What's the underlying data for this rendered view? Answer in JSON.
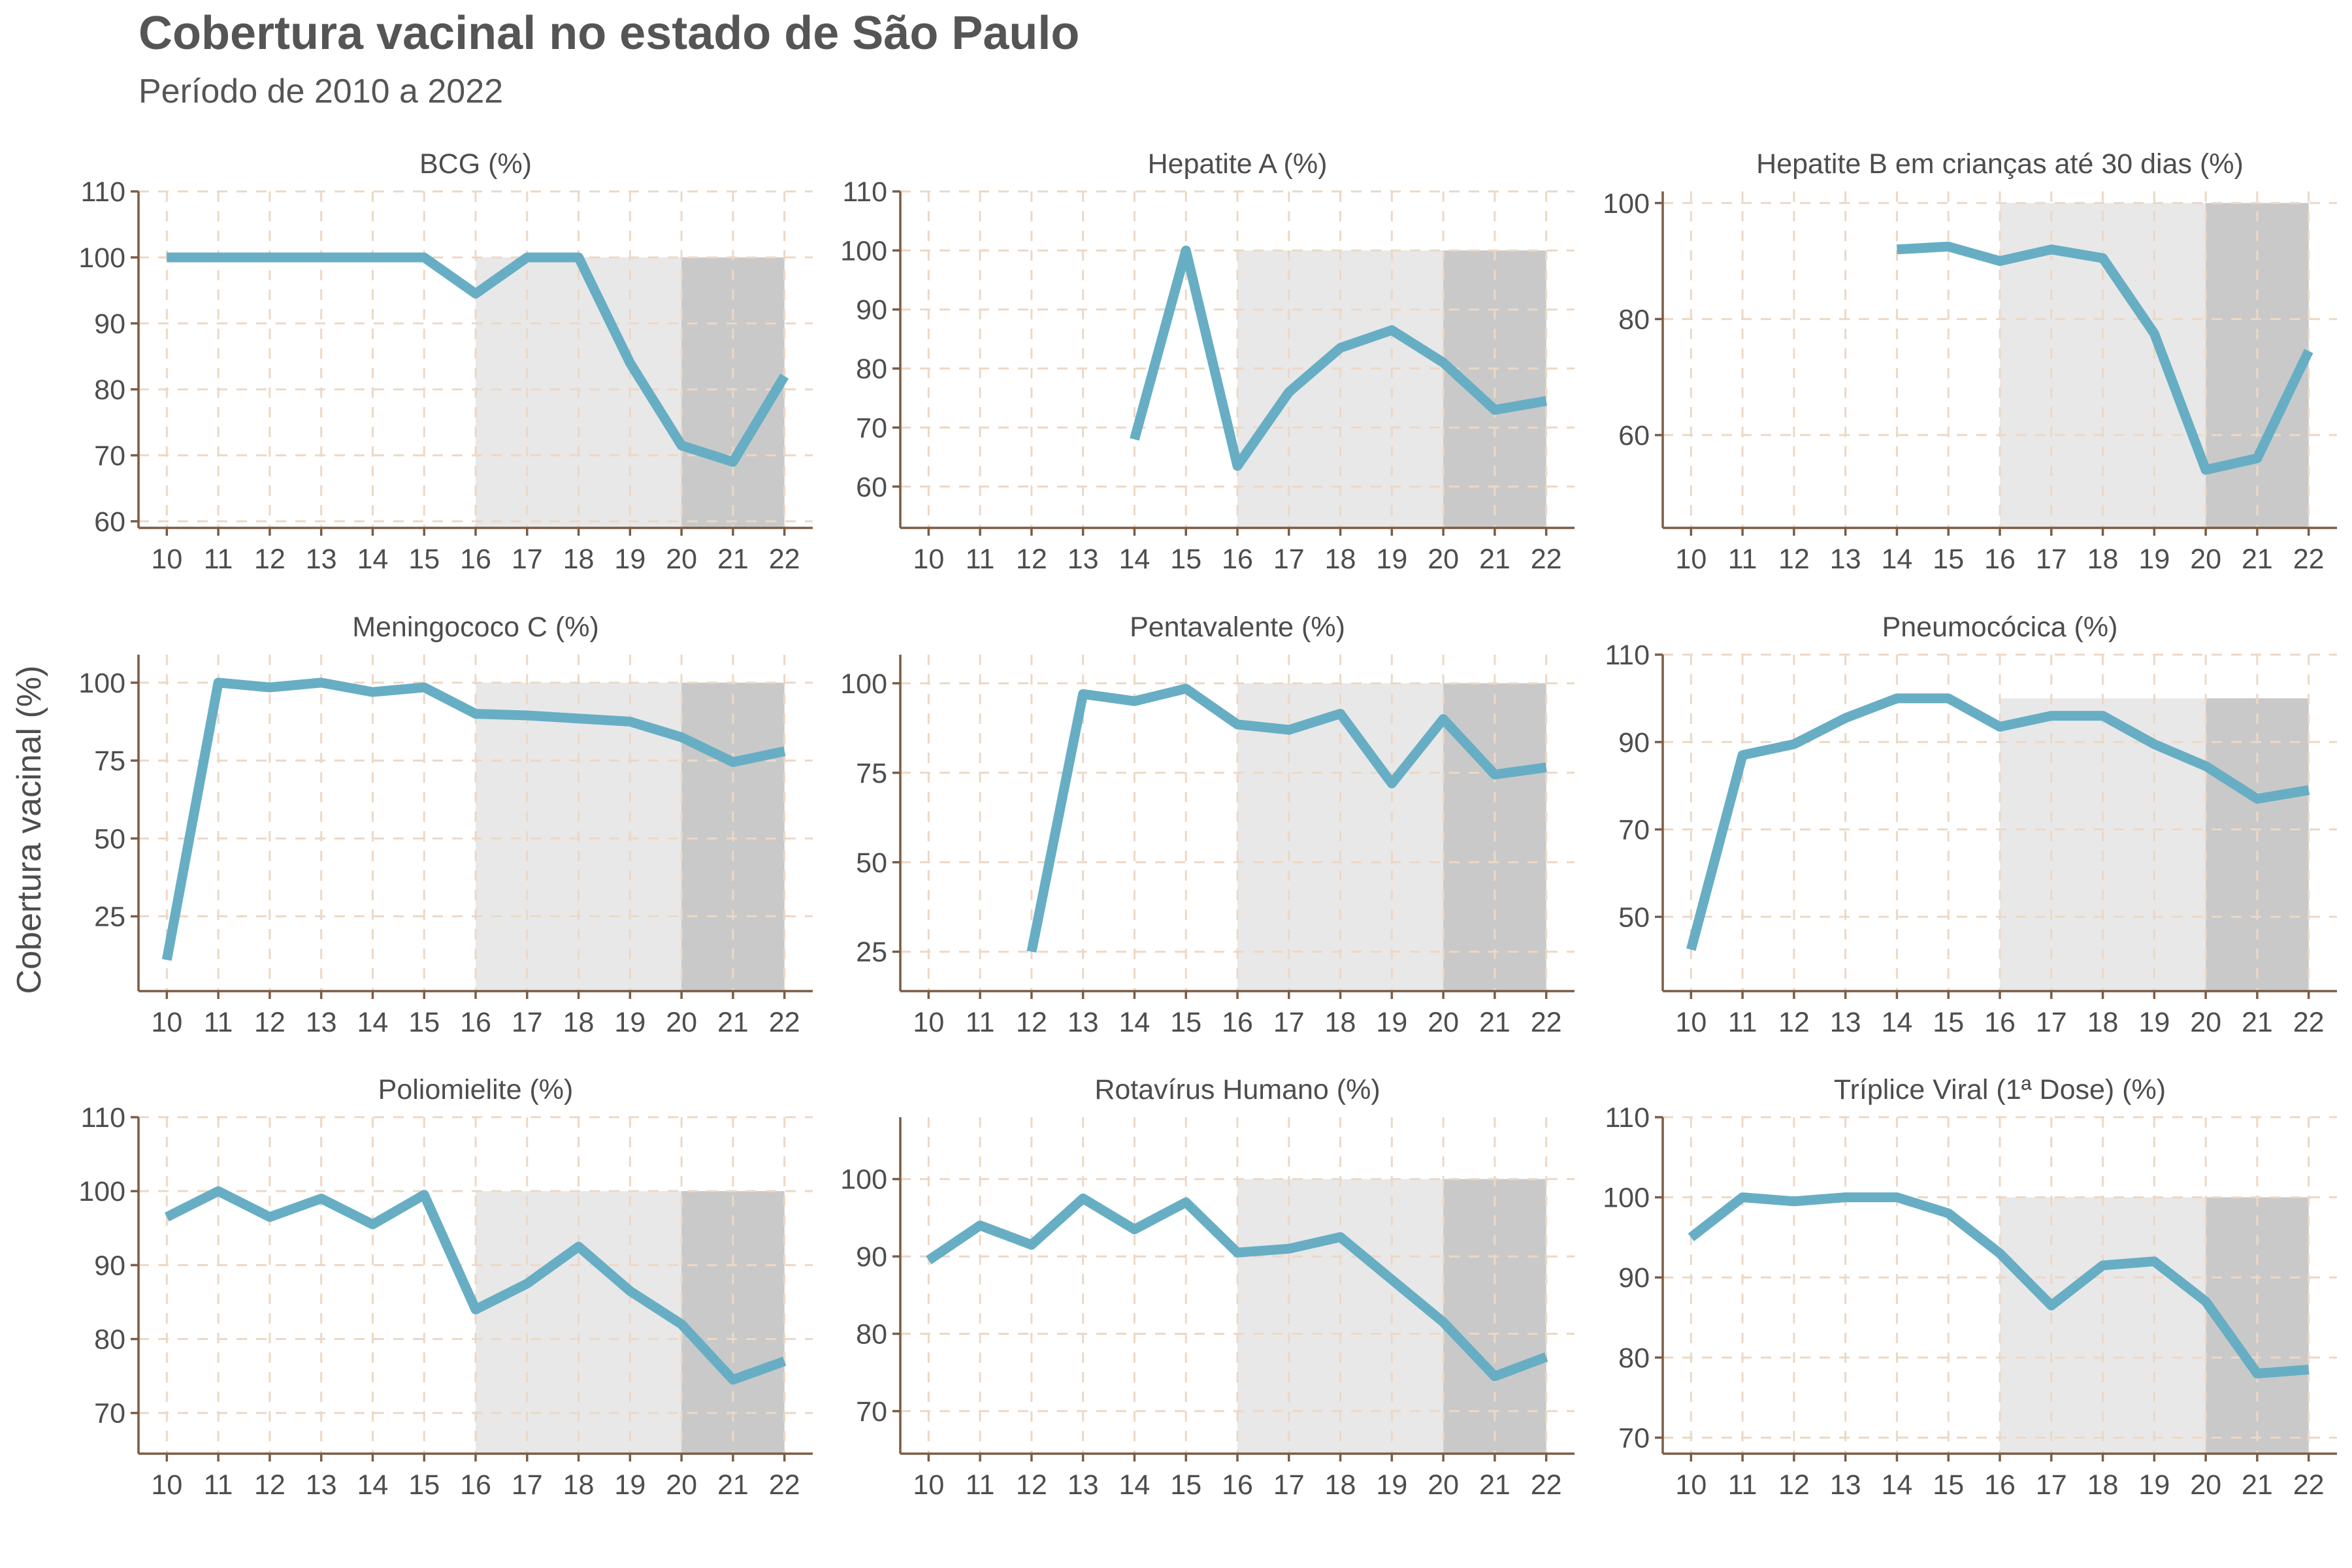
{
  "title": "Cobertura vacinal no estado de São Paulo",
  "subtitle": "Período de 2010 a 2022",
  "ylabel": "Cobertura vacinal (%)",
  "colors": {
    "line": "#67aec4",
    "axis": "#7a5c45",
    "grid": "#ecd8c5",
    "shade_light": "#e8e8e8",
    "shade_dark": "#c9c9c9",
    "text": "#4d4d4d"
  },
  "chart_data": [
    {
      "type": "line",
      "title": "BCG (%)",
      "x": [
        "10",
        "11",
        "12",
        "13",
        "14",
        "15",
        "16",
        "17",
        "18",
        "19",
        "20",
        "21",
        "22"
      ],
      "values": [
        100,
        100,
        100,
        100,
        100,
        100,
        94.5,
        100,
        100,
        84,
        71.5,
        69,
        82
      ],
      "ylim": [
        59,
        110
      ],
      "yticks": [
        60,
        70,
        80,
        90,
        100,
        110
      ],
      "shaded_periods": [
        {
          "from": "16",
          "to": "22",
          "shade": "light",
          "top": 100
        },
        {
          "from": "20",
          "to": "22",
          "shade": "dark",
          "top": 100
        }
      ],
      "grid": true
    },
    {
      "type": "line",
      "title": "Hepatite A (%)",
      "x": [
        "10",
        "11",
        "12",
        "13",
        "14",
        "15",
        "16",
        "17",
        "18",
        "19",
        "20",
        "21",
        "22"
      ],
      "values": [
        null,
        null,
        null,
        null,
        68,
        100,
        63.5,
        76,
        83.5,
        86.5,
        81,
        73,
        74.5
      ],
      "ylim": [
        53,
        110
      ],
      "yticks": [
        60,
        70,
        80,
        90,
        100,
        110
      ],
      "shaded_periods": [
        {
          "from": "16",
          "to": "22",
          "shade": "light",
          "top": 100
        },
        {
          "from": "20",
          "to": "22",
          "shade": "dark",
          "top": 100
        }
      ],
      "grid": true
    },
    {
      "type": "line",
      "title": "Hepatite B em crianças até 30 dias (%)",
      "x": [
        "10",
        "11",
        "12",
        "13",
        "14",
        "15",
        "16",
        "17",
        "18",
        "19",
        "20",
        "21",
        "22"
      ],
      "values": [
        null,
        null,
        null,
        null,
        92,
        92.5,
        90,
        92,
        90.5,
        77.5,
        54,
        56,
        74.5
      ],
      "ylim": [
        44,
        102
      ],
      "yticks": [
        60,
        80,
        100
      ],
      "shaded_periods": [
        {
          "from": "16",
          "to": "22",
          "shade": "light",
          "top": 100
        },
        {
          "from": "20",
          "to": "22",
          "shade": "dark",
          "top": 100
        }
      ],
      "grid": true
    },
    {
      "type": "line",
      "title": "Meningococo C (%)",
      "x": [
        "10",
        "11",
        "12",
        "13",
        "14",
        "15",
        "16",
        "17",
        "18",
        "19",
        "20",
        "21",
        "22"
      ],
      "values": [
        11,
        100,
        98.5,
        100,
        97,
        98.5,
        90,
        89.5,
        88.5,
        87.5,
        82.5,
        74.5,
        78
      ],
      "ylim": [
        1,
        109
      ],
      "yticks": [
        25,
        50,
        75,
        100
      ],
      "shaded_periods": [
        {
          "from": "16",
          "to": "22",
          "shade": "light",
          "top": 100
        },
        {
          "from": "20",
          "to": "22",
          "shade": "dark",
          "top": 100
        }
      ],
      "grid": true
    },
    {
      "type": "line",
      "title": "Pentavalente (%)",
      "x": [
        "10",
        "11",
        "12",
        "13",
        "14",
        "15",
        "16",
        "17",
        "18",
        "19",
        "20",
        "21",
        "22"
      ],
      "values": [
        null,
        null,
        25,
        97,
        95,
        98.5,
        88.5,
        87,
        91.5,
        72,
        90,
        74.5,
        76.5
      ],
      "ylim": [
        14,
        108
      ],
      "yticks": [
        25,
        50,
        75,
        100
      ],
      "shaded_periods": [
        {
          "from": "16",
          "to": "22",
          "shade": "light",
          "top": 100
        },
        {
          "from": "20",
          "to": "22",
          "shade": "dark",
          "top": 100
        }
      ],
      "grid": true
    },
    {
      "type": "line",
      "title": "Pneumocócica (%)",
      "x": [
        "10",
        "11",
        "12",
        "13",
        "14",
        "15",
        "16",
        "17",
        "18",
        "19",
        "20",
        "21",
        "22"
      ],
      "values": [
        42.5,
        87,
        89.5,
        95.5,
        100,
        100,
        93.5,
        96,
        96,
        89.5,
        84.5,
        77,
        79
      ],
      "ylim": [
        33,
        110
      ],
      "yticks": [
        50,
        70,
        90,
        110
      ],
      "shaded_periods": [
        {
          "from": "16",
          "to": "22",
          "shade": "light",
          "top": 100
        },
        {
          "from": "20",
          "to": "22",
          "shade": "dark",
          "top": 100
        }
      ],
      "grid": true
    },
    {
      "type": "line",
      "title": "Poliomielite (%)",
      "x": [
        "10",
        "11",
        "12",
        "13",
        "14",
        "15",
        "16",
        "17",
        "18",
        "19",
        "20",
        "21",
        "22"
      ],
      "values": [
        96.5,
        100,
        96.5,
        99,
        95.5,
        99.5,
        84,
        87.5,
        92.5,
        86.5,
        82,
        74.5,
        77
      ],
      "ylim": [
        64.5,
        110
      ],
      "yticks": [
        70,
        80,
        90,
        100,
        110
      ],
      "shaded_periods": [
        {
          "from": "16",
          "to": "22",
          "shade": "light",
          "top": 100
        },
        {
          "from": "20",
          "to": "22",
          "shade": "dark",
          "top": 100
        }
      ],
      "grid": true
    },
    {
      "type": "line",
      "title": "Rotavírus Humano (%)",
      "x": [
        "10",
        "11",
        "12",
        "13",
        "14",
        "15",
        "16",
        "17",
        "18",
        "19",
        "20",
        "21",
        "22"
      ],
      "values": [
        89.5,
        94,
        91.5,
        97.5,
        93.5,
        97,
        90.5,
        91,
        92.5,
        87,
        81.5,
        74.5,
        77
      ],
      "ylim": [
        64.5,
        108
      ],
      "yticks": [
        70,
        80,
        90,
        100
      ],
      "shaded_periods": [
        {
          "from": "16",
          "to": "22",
          "shade": "light",
          "top": 100
        },
        {
          "from": "20",
          "to": "22",
          "shade": "dark",
          "top": 100
        }
      ],
      "grid": true
    },
    {
      "type": "line",
      "title": "Tríplice Viral (1ª Dose) (%)",
      "x": [
        "10",
        "11",
        "12",
        "13",
        "14",
        "15",
        "16",
        "17",
        "18",
        "19",
        "20",
        "21",
        "22"
      ],
      "values": [
        95,
        100,
        99.5,
        100,
        100,
        98,
        93,
        86.5,
        91.5,
        92,
        87,
        78,
        78.5
      ],
      "ylim": [
        68,
        110
      ],
      "yticks": [
        70,
        80,
        90,
        100,
        110
      ],
      "shaded_periods": [
        {
          "from": "16",
          "to": "22",
          "shade": "light",
          "top": 100
        },
        {
          "from": "20",
          "to": "22",
          "shade": "dark",
          "top": 100
        }
      ],
      "grid": true
    }
  ]
}
